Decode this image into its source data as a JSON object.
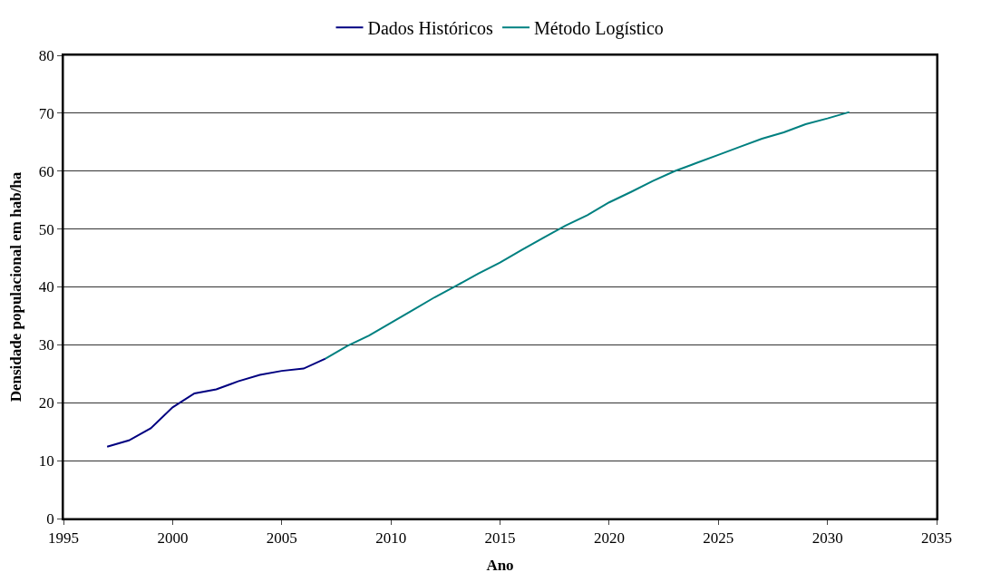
{
  "chart_data": {
    "type": "line",
    "xlabel": "Ano",
    "ylabel": "Densidade populacional em hab/ha",
    "series": [
      {
        "name": "Dados Históricos",
        "color": "#000080",
        "x": [
          1997,
          1998,
          1999,
          2000,
          2001,
          2002,
          2003,
          2004,
          2005,
          2006,
          2007
        ],
        "values": [
          12.4,
          13.5,
          15.6,
          19.2,
          21.6,
          22.3,
          23.7,
          24.8,
          25.5,
          25.9,
          27.6
        ]
      },
      {
        "name": "Método Logístico",
        "color": "#008080",
        "x": [
          2007,
          2008,
          2009,
          2010,
          2011,
          2012,
          2013,
          2014,
          2015,
          2016,
          2017,
          2018,
          2019,
          2020,
          2021,
          2022,
          2023,
          2024,
          2025,
          2026,
          2027,
          2028,
          2029,
          2030,
          2031
        ],
        "values": [
          27.6,
          29.8,
          31.6,
          33.8,
          36.0,
          38.2,
          40.2,
          42.3,
          44.2,
          46.4,
          48.5,
          50.6,
          52.4,
          54.6,
          56.4,
          58.3,
          60.0,
          61.4,
          62.8,
          64.2,
          65.6,
          66.7,
          68.1,
          69.1,
          70.2
        ]
      }
    ],
    "xlim": [
      1995,
      2035
    ],
    "xticks": [
      1995,
      2000,
      2005,
      2010,
      2015,
      2020,
      2025,
      2030,
      2035
    ],
    "ylim": [
      0,
      80
    ],
    "yticks": [
      0,
      10,
      20,
      30,
      40,
      50,
      60,
      70,
      80
    ],
    "grid": "y",
    "legend": "top",
    "marker": "none",
    "line_style": "solid"
  }
}
